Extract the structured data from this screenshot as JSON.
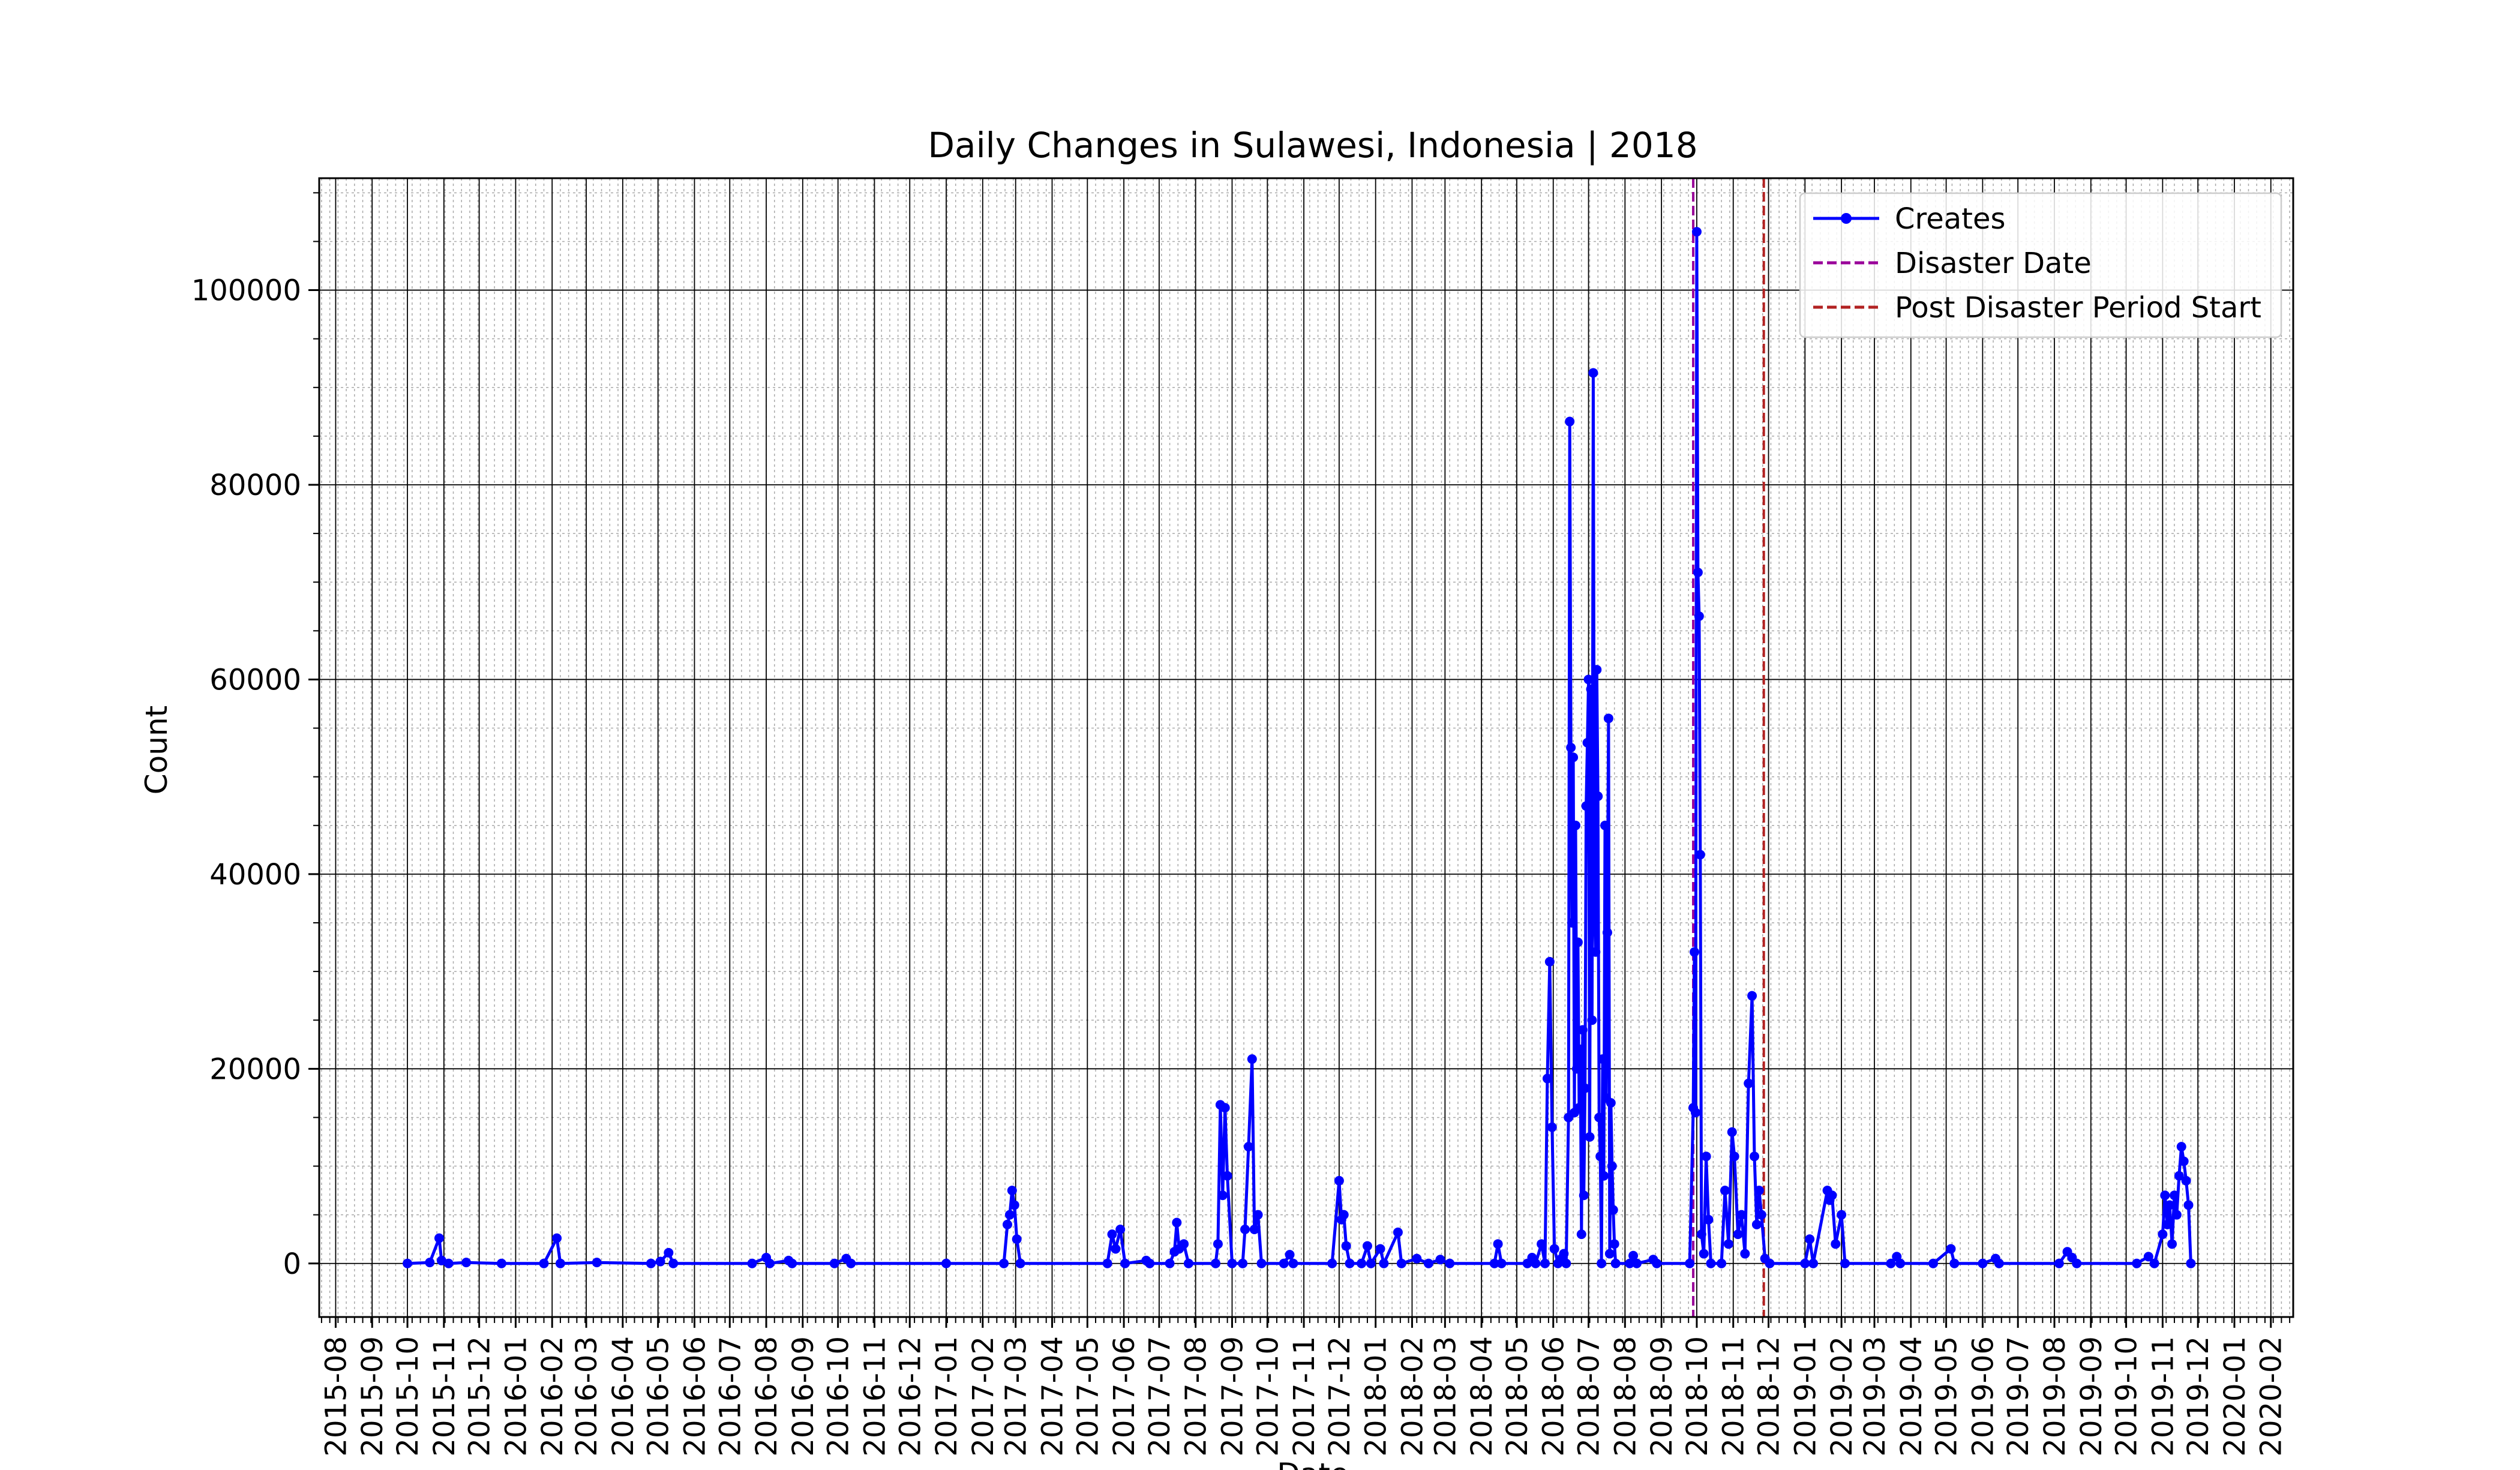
{
  "chart_data": {
    "type": "line",
    "title": "Daily Changes in Sulawesi, Indonesia | 2018",
    "xlabel": "Date",
    "ylabel": "Count",
    "xlim": [
      "2015-07-18",
      "2020-02-20"
    ],
    "ylim": [
      -5500,
      111500
    ],
    "y_ticks": [
      0,
      20000,
      40000,
      60000,
      80000,
      100000
    ],
    "x_tick_labels": [
      "2015-08",
      "2015-09",
      "2015-10",
      "2015-11",
      "2015-12",
      "2016-01",
      "2016-02",
      "2016-03",
      "2016-04",
      "2016-05",
      "2016-06",
      "2016-07",
      "2016-08",
      "2016-09",
      "2016-10",
      "2016-11",
      "2016-12",
      "2017-01",
      "2017-02",
      "2017-03",
      "2017-04",
      "2017-05",
      "2017-06",
      "2017-07",
      "2017-08",
      "2017-09",
      "2017-10",
      "2017-11",
      "2017-12",
      "2018-01",
      "2018-02",
      "2018-03",
      "2018-04",
      "2018-05",
      "2018-06",
      "2018-07",
      "2018-08",
      "2018-09",
      "2018-10",
      "2018-11",
      "2018-12",
      "2019-01",
      "2019-02",
      "2019-03",
      "2019-04",
      "2019-05",
      "2019-06",
      "2019-07",
      "2019-08",
      "2019-09",
      "2019-10",
      "2019-11",
      "2019-12",
      "2020-01",
      "2020-02"
    ],
    "grid": true,
    "legend_position": "top-right",
    "legend": [
      "Creates",
      "Disaster Date",
      "Post Disaster Period Start"
    ],
    "series": [
      {
        "name": "Creates",
        "color": "#0000ff",
        "points": [
          [
            "2015-10-01",
            0
          ],
          [
            "2015-10-20",
            100
          ],
          [
            "2015-10-28",
            2600
          ],
          [
            "2015-10-30",
            300
          ],
          [
            "2015-11-05",
            0
          ],
          [
            "2015-11-20",
            100
          ],
          [
            "2015-12-20",
            0
          ],
          [
            "2016-01-25",
            0
          ],
          [
            "2016-02-05",
            2600
          ],
          [
            "2016-02-08",
            0
          ],
          [
            "2016-03-10",
            100
          ],
          [
            "2016-04-25",
            0
          ],
          [
            "2016-05-03",
            200
          ],
          [
            "2016-05-10",
            1100
          ],
          [
            "2016-05-14",
            0
          ],
          [
            "2016-07-20",
            0
          ],
          [
            "2016-08-01",
            600
          ],
          [
            "2016-08-04",
            0
          ],
          [
            "2016-08-20",
            300
          ],
          [
            "2016-08-23",
            0
          ],
          [
            "2016-09-28",
            0
          ],
          [
            "2016-10-08",
            500
          ],
          [
            "2016-10-12",
            0
          ],
          [
            "2017-01-01",
            0
          ],
          [
            "2017-02-19",
            0
          ],
          [
            "2017-02-22",
            4000
          ],
          [
            "2017-02-24",
            5000
          ],
          [
            "2017-02-26",
            7500
          ],
          [
            "2017-02-28",
            6000
          ],
          [
            "2017-03-02",
            2500
          ],
          [
            "2017-03-05",
            0
          ],
          [
            "2017-05-18",
            0
          ],
          [
            "2017-05-22",
            3000
          ],
          [
            "2017-05-25",
            1500
          ],
          [
            "2017-05-29",
            3500
          ],
          [
            "2017-06-02",
            0
          ],
          [
            "2017-06-20",
            300
          ],
          [
            "2017-06-23",
            0
          ],
          [
            "2017-07-10",
            0
          ],
          [
            "2017-07-14",
            1200
          ],
          [
            "2017-07-16",
            4200
          ],
          [
            "2017-07-18",
            1500
          ],
          [
            "2017-07-22",
            2000
          ],
          [
            "2017-07-26",
            0
          ],
          [
            "2017-08-18",
            0
          ],
          [
            "2017-08-20",
            2000
          ],
          [
            "2017-08-22",
            16300
          ],
          [
            "2017-08-24",
            7000
          ],
          [
            "2017-08-26",
            16000
          ],
          [
            "2017-08-28",
            9000
          ],
          [
            "2017-09-01",
            0
          ],
          [
            "2017-09-10",
            0
          ],
          [
            "2017-09-12",
            3500
          ],
          [
            "2017-09-15",
            12000
          ],
          [
            "2017-09-18",
            21000
          ],
          [
            "2017-09-20",
            3500
          ],
          [
            "2017-09-23",
            5000
          ],
          [
            "2017-09-26",
            0
          ],
          [
            "2017-10-15",
            0
          ],
          [
            "2017-10-20",
            900
          ],
          [
            "2017-10-23",
            0
          ],
          [
            "2017-11-25",
            0
          ],
          [
            "2017-12-01",
            8500
          ],
          [
            "2017-12-03",
            4500
          ],
          [
            "2017-12-05",
            5000
          ],
          [
            "2017-12-07",
            1800
          ],
          [
            "2017-12-10",
            0
          ],
          [
            "2017-12-20",
            0
          ],
          [
            "2017-12-25",
            1800
          ],
          [
            "2017-12-28",
            0
          ],
          [
            "2018-01-05",
            1500
          ],
          [
            "2018-01-08",
            0
          ],
          [
            "2018-01-20",
            3200
          ],
          [
            "2018-01-23",
            0
          ],
          [
            "2018-02-05",
            500
          ],
          [
            "2018-02-15",
            0
          ],
          [
            "2018-02-25",
            400
          ],
          [
            "2018-03-05",
            0
          ],
          [
            "2018-04-12",
            0
          ],
          [
            "2018-04-15",
            2000
          ],
          [
            "2018-04-18",
            0
          ],
          [
            "2018-05-10",
            0
          ],
          [
            "2018-05-14",
            600
          ],
          [
            "2018-05-17",
            0
          ],
          [
            "2018-05-22",
            2000
          ],
          [
            "2018-05-25",
            0
          ],
          [
            "2018-05-27",
            19000
          ],
          [
            "2018-05-29",
            31000
          ],
          [
            "2018-05-31",
            14000
          ],
          [
            "2018-06-02",
            1500
          ],
          [
            "2018-06-05",
            0
          ],
          [
            "2018-06-08",
            500
          ],
          [
            "2018-06-10",
            1000
          ],
          [
            "2018-06-12",
            0
          ],
          [
            "2018-06-14",
            15000
          ],
          [
            "2018-06-15",
            86500
          ],
          [
            "2018-06-16",
            53000
          ],
          [
            "2018-06-17",
            35000
          ],
          [
            "2018-06-18",
            52000
          ],
          [
            "2018-06-19",
            15500
          ],
          [
            "2018-06-20",
            45000
          ],
          [
            "2018-06-21",
            20000
          ],
          [
            "2018-06-22",
            33000
          ],
          [
            "2018-06-23",
            16000
          ],
          [
            "2018-06-24",
            22000
          ],
          [
            "2018-06-25",
            3000
          ],
          [
            "2018-06-26",
            24000
          ],
          [
            "2018-06-27",
            7000
          ],
          [
            "2018-06-28",
            18000
          ],
          [
            "2018-06-29",
            47000
          ],
          [
            "2018-06-30",
            53500
          ],
          [
            "2018-07-01",
            60000
          ],
          [
            "2018-07-02",
            13000
          ],
          [
            "2018-07-03",
            59000
          ],
          [
            "2018-07-04",
            25000
          ],
          [
            "2018-07-05",
            91500
          ],
          [
            "2018-07-06",
            37000
          ],
          [
            "2018-07-07",
            32000
          ],
          [
            "2018-07-08",
            61000
          ],
          [
            "2018-07-09",
            48000
          ],
          [
            "2018-07-10",
            15000
          ],
          [
            "2018-07-11",
            11000
          ],
          [
            "2018-07-12",
            0
          ],
          [
            "2018-07-13",
            21000
          ],
          [
            "2018-07-14",
            9000
          ],
          [
            "2018-07-15",
            45000
          ],
          [
            "2018-07-16",
            17000
          ],
          [
            "2018-07-17",
            34000
          ],
          [
            "2018-07-18",
            56000
          ],
          [
            "2018-07-19",
            1000
          ],
          [
            "2018-07-20",
            16500
          ],
          [
            "2018-07-21",
            10000
          ],
          [
            "2018-07-22",
            5500
          ],
          [
            "2018-07-23",
            2000
          ],
          [
            "2018-07-24",
            0
          ],
          [
            "2018-08-05",
            0
          ],
          [
            "2018-08-08",
            800
          ],
          [
            "2018-08-11",
            0
          ],
          [
            "2018-08-25",
            400
          ],
          [
            "2018-08-28",
            0
          ],
          [
            "2018-09-25",
            0
          ],
          [
            "2018-09-28",
            16000
          ],
          [
            "2018-09-29",
            32000
          ],
          [
            "2018-09-30",
            15500
          ],
          [
            "2018-10-01",
            106000
          ],
          [
            "2018-10-02",
            71000
          ],
          [
            "2018-10-03",
            66500
          ],
          [
            "2018-10-04",
            42000
          ],
          [
            "2018-10-05",
            3000
          ],
          [
            "2018-10-07",
            1000
          ],
          [
            "2018-10-09",
            11000
          ],
          [
            "2018-10-11",
            4500
          ],
          [
            "2018-10-13",
            0
          ],
          [
            "2018-10-22",
            0
          ],
          [
            "2018-10-25",
            7500
          ],
          [
            "2018-10-28",
            2000
          ],
          [
            "2018-10-31",
            13500
          ],
          [
            "2018-11-02",
            11000
          ],
          [
            "2018-11-05",
            3000
          ],
          [
            "2018-11-08",
            5000
          ],
          [
            "2018-11-11",
            1000
          ],
          [
            "2018-11-14",
            18500
          ],
          [
            "2018-11-17",
            27500
          ],
          [
            "2018-11-19",
            11000
          ],
          [
            "2018-11-21",
            4000
          ],
          [
            "2018-11-23",
            7500
          ],
          [
            "2018-11-25",
            5000
          ],
          [
            "2018-11-28",
            500
          ],
          [
            "2018-12-02",
            0
          ],
          [
            "2019-01-01",
            0
          ],
          [
            "2019-01-05",
            2500
          ],
          [
            "2019-01-08",
            0
          ],
          [
            "2019-01-20",
            7500
          ],
          [
            "2019-01-22",
            6500
          ],
          [
            "2019-01-24",
            7000
          ],
          [
            "2019-01-27",
            2000
          ],
          [
            "2019-02-01",
            5000
          ],
          [
            "2019-02-04",
            0
          ],
          [
            "2019-03-15",
            0
          ],
          [
            "2019-03-20",
            700
          ],
          [
            "2019-03-23",
            0
          ],
          [
            "2019-04-20",
            0
          ],
          [
            "2019-05-05",
            1500
          ],
          [
            "2019-05-08",
            0
          ],
          [
            "2019-06-01",
            0
          ],
          [
            "2019-06-12",
            500
          ],
          [
            "2019-06-15",
            0
          ],
          [
            "2019-08-05",
            0
          ],
          [
            "2019-08-12",
            1200
          ],
          [
            "2019-08-16",
            600
          ],
          [
            "2019-08-20",
            0
          ],
          [
            "2019-10-10",
            0
          ],
          [
            "2019-10-20",
            700
          ],
          [
            "2019-10-25",
            0
          ],
          [
            "2019-11-01",
            3000
          ],
          [
            "2019-11-03",
            7000
          ],
          [
            "2019-11-05",
            4000
          ],
          [
            "2019-11-07",
            6000
          ],
          [
            "2019-11-09",
            2000
          ],
          [
            "2019-11-11",
            7000
          ],
          [
            "2019-11-13",
            5000
          ],
          [
            "2019-11-15",
            9000
          ],
          [
            "2019-11-17",
            12000
          ],
          [
            "2019-11-19",
            10500
          ],
          [
            "2019-11-21",
            8500
          ],
          [
            "2019-11-23",
            6000
          ],
          [
            "2019-11-25",
            0
          ]
        ]
      }
    ],
    "markers": [
      {
        "label": "Disaster Date",
        "date": "2018-09-28",
        "color": "#990099"
      },
      {
        "label": "Post Disaster Period Start",
        "date": "2018-11-27",
        "color": "#b22222"
      }
    ]
  }
}
